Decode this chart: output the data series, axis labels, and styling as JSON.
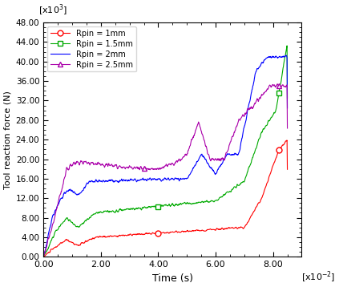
{
  "title": "",
  "xlabel": "Time (s)",
  "ylabel": "Tool reaction force (N)",
  "xlim": [
    0,
    0.09
  ],
  "ylim": [
    0,
    48000
  ],
  "xticks": [
    0.0,
    0.02,
    0.04,
    0.06,
    0.08
  ],
  "xtick_labels": [
    "0.00",
    "2.00",
    "4.00",
    "6.00",
    "8.00"
  ],
  "yticks": [
    0,
    4000,
    8000,
    12000,
    16000,
    20000,
    24000,
    28000,
    32000,
    36000,
    40000,
    44000,
    48000
  ],
  "ytick_labels": [
    "0.00",
    "4.00",
    "8.00",
    "12.00",
    "16.00",
    "20.00",
    "24.00",
    "28.00",
    "32.00",
    "36.00",
    "40.00",
    "44.00",
    "48.00"
  ],
  "legend_entries": [
    "Rpin = 1mm",
    "Rpin = 1.5mm",
    "Rpin = 2mm",
    "Rpin = 2.5mm"
  ],
  "line_colors": [
    "#ff0000",
    "#00aa00",
    "#0000ff",
    "#aa00aa"
  ],
  "figsize": [
    4.23,
    3.58
  ],
  "dpi": 100
}
